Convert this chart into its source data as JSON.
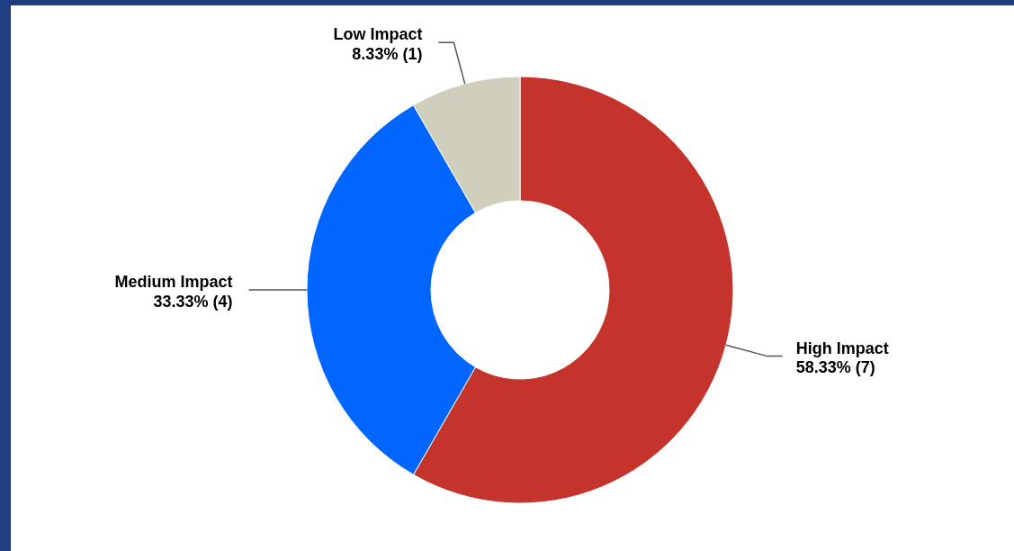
{
  "chart_data": {
    "type": "donut",
    "categories": [
      "High Impact",
      "Medium Impact",
      "Low Impact"
    ],
    "values": [
      7,
      4,
      1
    ],
    "colors": [
      "#c4342d",
      "#0066ff",
      "#d0cfbe"
    ],
    "value_labels": [
      "58.33% (7)",
      "33.33% (4)",
      "8.33% (1)"
    ]
  }
}
